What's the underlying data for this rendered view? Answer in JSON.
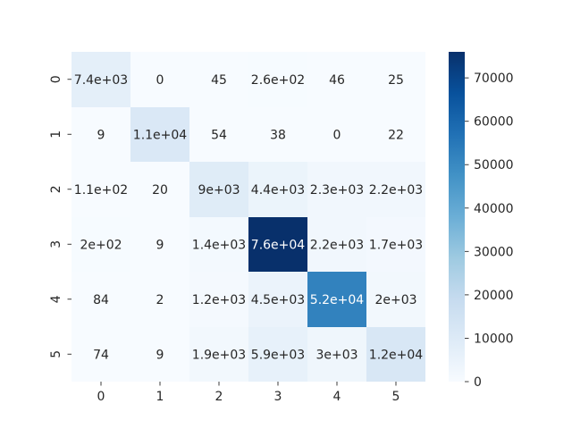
{
  "chart_data": {
    "type": "heatmap",
    "title": "",
    "xlabel": "",
    "ylabel": "",
    "x_categories": [
      "0",
      "1",
      "2",
      "3",
      "4",
      "5"
    ],
    "y_categories": [
      "0",
      "1",
      "2",
      "3",
      "4",
      "5"
    ],
    "values": [
      [
        7400,
        0,
        45,
        260,
        46,
        25
      ],
      [
        9,
        11000,
        54,
        38,
        0,
        22
      ],
      [
        110,
        20,
        9000,
        4400,
        2300,
        2200
      ],
      [
        200,
        9,
        1400,
        76000,
        2200,
        1700
      ],
      [
        84,
        2,
        1200,
        4500,
        52000,
        2000
      ],
      [
        74,
        9,
        1900,
        5900,
        3000,
        12000
      ]
    ],
    "annotations": [
      [
        "7.4e+03",
        "0",
        "45",
        "2.6e+02",
        "46",
        "25"
      ],
      [
        "9",
        "1.1e+04",
        "54",
        "38",
        "0",
        "22"
      ],
      [
        "1.1e+02",
        "20",
        "9e+03",
        "4.4e+03",
        "2.3e+03",
        "2.2e+03"
      ],
      [
        "2e+02",
        "9",
        "1.4e+03",
        "7.6e+04",
        "2.2e+03",
        "1.7e+03"
      ],
      [
        "84",
        "2",
        "1.2e+03",
        "4.5e+03",
        "5.2e+04",
        "2e+03"
      ],
      [
        "74",
        "9",
        "1.9e+03",
        "5.9e+03",
        "3e+03",
        "1.2e+04"
      ]
    ],
    "colormap": "Blues",
    "colormap_stops": [
      "#f7fbff",
      "#deebf7",
      "#c6dbef",
      "#9ecae1",
      "#6baed6",
      "#4292c6",
      "#2171b5",
      "#08519c",
      "#08306b"
    ],
    "color_range": [
      0,
      76000
    ],
    "colorbar": {
      "ticks": [
        0,
        10000,
        20000,
        30000,
        40000,
        50000,
        60000,
        70000
      ],
      "tick_labels": [
        "0",
        "10000",
        "20000",
        "30000",
        "40000",
        "50000",
        "60000",
        "70000"
      ]
    }
  }
}
